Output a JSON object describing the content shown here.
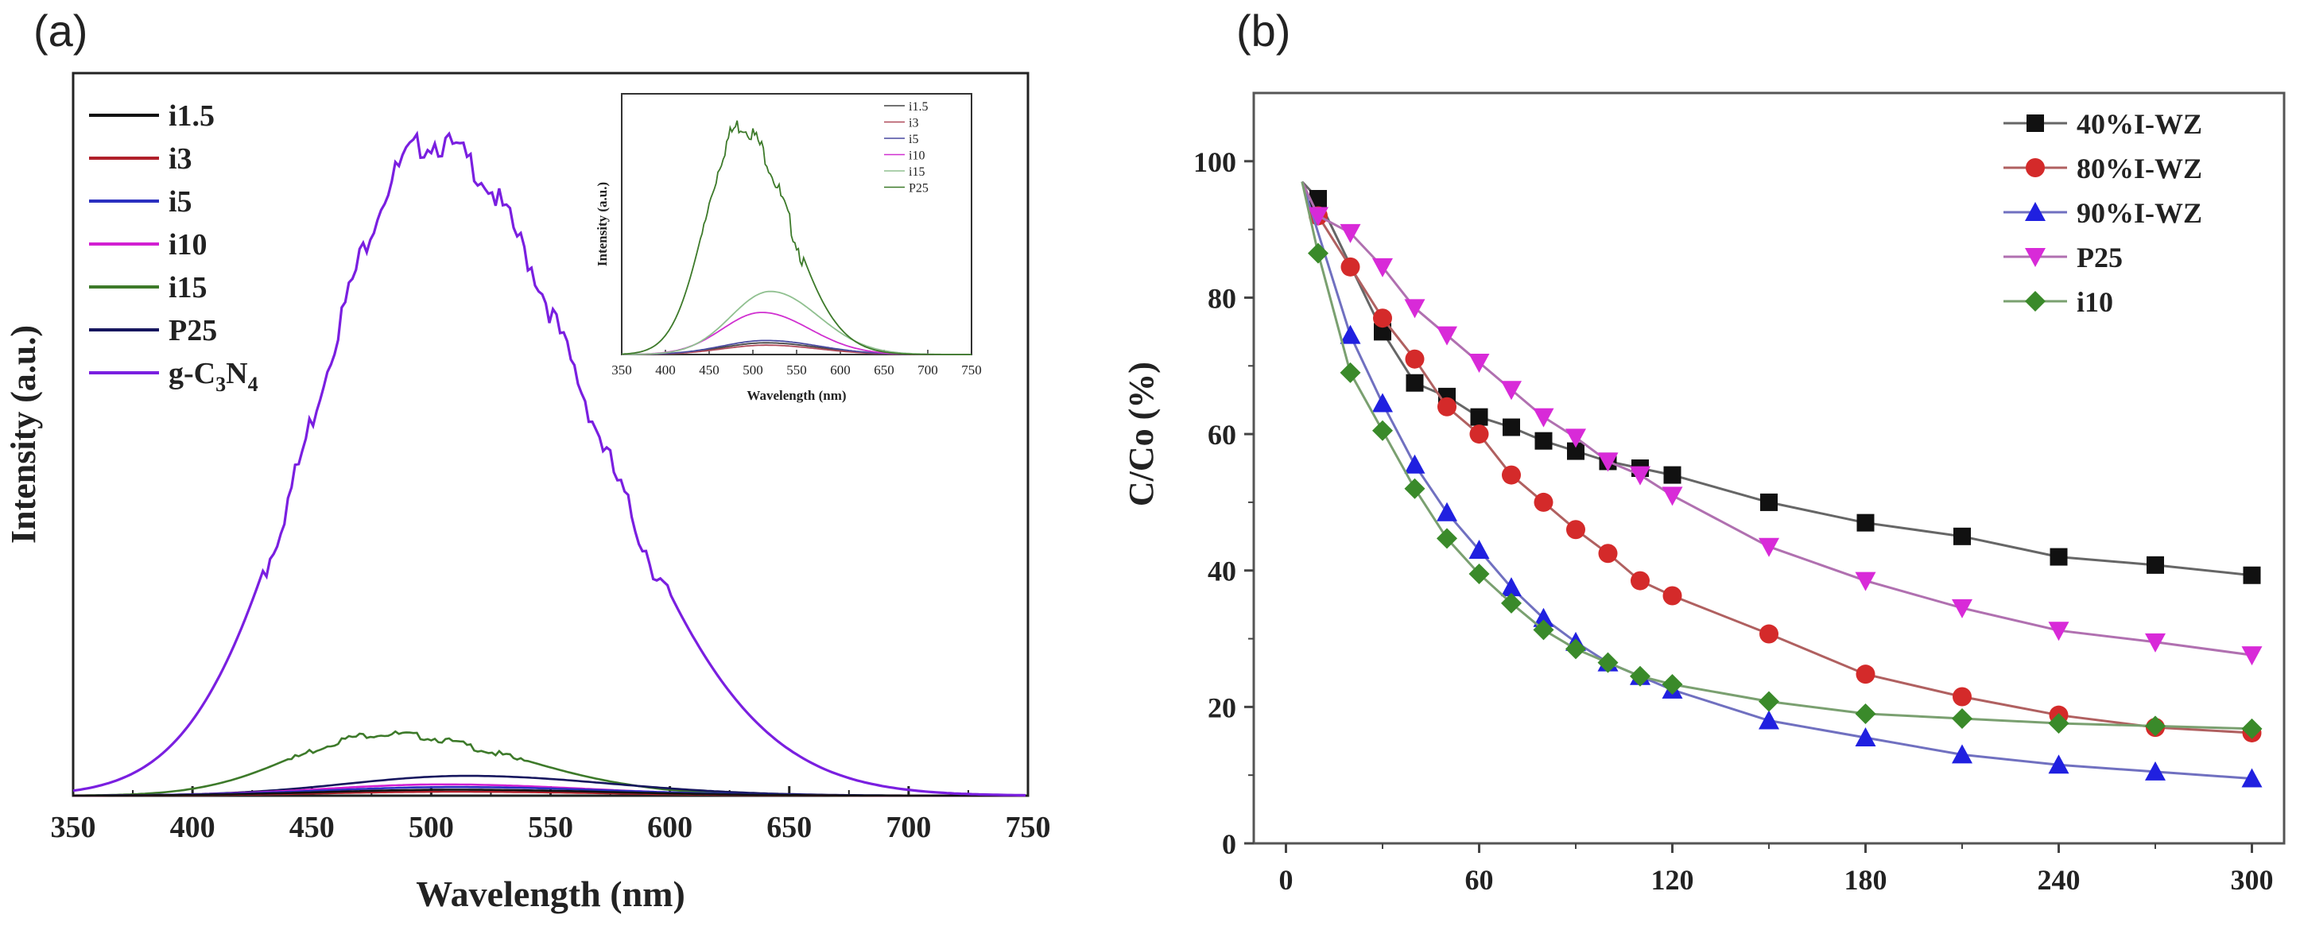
{
  "panels": {
    "a_label": "(a)",
    "b_label": "(b)"
  },
  "chart_data": [
    {
      "id": "a",
      "type": "line",
      "xlabel": "Wavelength (nm)",
      "ylabel": "Intensity (a.u.)",
      "xlim": [
        350,
        750
      ],
      "ylim": [
        0,
        100
      ],
      "xticks": [
        "350",
        "400",
        "450",
        "500",
        "550",
        "600",
        "650",
        "700",
        "750"
      ],
      "legend_position": "top-left",
      "series": [
        {
          "name": "i1.5",
          "color": "#111111",
          "peak_x": 510,
          "peak_y": 0.9,
          "sigma_l": 55,
          "sigma_r": 65
        },
        {
          "name": "i3",
          "color": "#b0202a",
          "peak_x": 510,
          "peak_y": 0.6,
          "sigma_l": 55,
          "sigma_r": 65
        },
        {
          "name": "i5",
          "color": "#2a2fc0",
          "peak_x": 510,
          "peak_y": 1.3,
          "sigma_l": 55,
          "sigma_r": 65
        },
        {
          "name": "i10",
          "color": "#d21fd2",
          "peak_x": 505,
          "peak_y": 1.7,
          "sigma_l": 50,
          "sigma_r": 60
        },
        {
          "name": "i15",
          "color": "#3d7a2a",
          "peak_x": 480,
          "peak_y": 9.6,
          "sigma_l": 38,
          "sigma_r": 55
        },
        {
          "name": "P25",
          "color": "#16165e",
          "peak_x": 515,
          "peak_y": 3.0,
          "sigma_l": 50,
          "sigma_r": 60
        },
        {
          "name": "g-C3N4",
          "name_main": "g-C",
          "sub1": "3",
          "mid": "N",
          "sub2": "4",
          "color": "#7a1fe0",
          "peak_x": 500,
          "peak_y": 100,
          "sigma_l": 48,
          "sigma_r": 65
        }
      ],
      "inset": {
        "xlabel": "Wavelength (nm)",
        "ylabel": "Intensity (a.u.)",
        "xlim": [
          350,
          750
        ],
        "xticks": [
          "350",
          "400",
          "450",
          "500",
          "550",
          "600",
          "650",
          "700",
          "750"
        ],
        "legend_position": "top-right",
        "series": [
          {
            "name": "i1.5",
            "color": "#444444",
            "peak_x": 515,
            "peak_y": 5,
            "sigma_l": 50,
            "sigma_r": 60
          },
          {
            "name": "i3",
            "color": "#b04a5a",
            "peak_x": 515,
            "peak_y": 4,
            "sigma_l": 50,
            "sigma_r": 60
          },
          {
            "name": "i5",
            "color": "#4a4aa0",
            "peak_x": 515,
            "peak_y": 6,
            "sigma_l": 50,
            "sigma_r": 60
          },
          {
            "name": "i10",
            "color": "#d030d0",
            "peak_x": 510,
            "peak_y": 18,
            "sigma_l": 45,
            "sigma_r": 55
          },
          {
            "name": "i15",
            "color": "#90c090",
            "peak_x": 520,
            "peak_y": 27,
            "sigma_l": 45,
            "sigma_r": 55
          },
          {
            "name": "P25",
            "color": "#3d7a2a",
            "peak_x": 485,
            "peak_y": 100,
            "sigma_l": 38,
            "sigma_r": 55
          }
        ]
      }
    },
    {
      "id": "b",
      "type": "line",
      "xlabel": "",
      "ylabel": "C/Co (%)",
      "xlim": [
        -10,
        310
      ],
      "ylim": [
        0,
        110
      ],
      "xticks": [
        0,
        60,
        120,
        180,
        240,
        300
      ],
      "yticks": [
        0,
        20,
        40,
        60,
        80,
        100
      ],
      "legend_position": "top-right",
      "series": [
        {
          "name": "40%I-WZ",
          "color": "#111111",
          "line_color": "#666666",
          "marker": "square",
          "x": [
            5,
            10,
            30,
            40,
            50,
            60,
            70,
            80,
            90,
            100,
            110,
            120,
            150,
            180,
            210,
            240,
            270,
            300
          ],
          "y": [
            97,
            94.5,
            75,
            67.5,
            65.5,
            62.5,
            61,
            59,
            57.5,
            56,
            55,
            54,
            50,
            47,
            45,
            42,
            40.8,
            39.3
          ]
        },
        {
          "name": "80%I-WZ",
          "color": "#d42a2a",
          "line_color": "#b06060",
          "marker": "circle",
          "x": [
            5,
            10,
            20,
            30,
            40,
            50,
            60,
            70,
            80,
            90,
            100,
            110,
            120,
            150,
            180,
            210,
            240,
            270,
            300
          ],
          "y": [
            97,
            92,
            84.5,
            77,
            71,
            64,
            60,
            54,
            50,
            46,
            42.5,
            38.5,
            36.3,
            30.7,
            24.8,
            21.5,
            18.8,
            17,
            16.2
          ]
        },
        {
          "name": "90%I-WZ",
          "color": "#2020e0",
          "line_color": "#7070c0",
          "marker": "triangle-up",
          "x": [
            5,
            20,
            30,
            40,
            50,
            60,
            70,
            80,
            90,
            100,
            110,
            120,
            150,
            180,
            210,
            240,
            270,
            300
          ],
          "y": [
            97,
            74.5,
            64.5,
            55.5,
            48.5,
            43,
            37.5,
            33,
            29.5,
            26.5,
            24.5,
            22.5,
            18,
            15.5,
            13,
            11.5,
            10.5,
            9.5
          ]
        },
        {
          "name": "P25",
          "color": "#d82ad8",
          "line_color": "#b070b0",
          "marker": "triangle-down",
          "x": [
            5,
            10,
            20,
            30,
            40,
            50,
            60,
            70,
            80,
            90,
            100,
            110,
            120,
            150,
            180,
            210,
            240,
            270,
            300
          ],
          "y": [
            97,
            92,
            89.5,
            84.5,
            78.5,
            74.5,
            70.5,
            66.5,
            62.5,
            59.5,
            56,
            54,
            51,
            43.5,
            38.5,
            34.5,
            31.2,
            29.5,
            27.6
          ]
        },
        {
          "name": "i10",
          "color": "#3a8a2a",
          "line_color": "#7aa070",
          "marker": "diamond",
          "x": [
            5,
            10,
            20,
            30,
            40,
            50,
            60,
            70,
            80,
            90,
            100,
            110,
            120,
            150,
            180,
            210,
            240,
            270,
            300
          ],
          "y": [
            97,
            86.5,
            69,
            60.5,
            52,
            44.7,
            39.5,
            35.2,
            31.3,
            28.5,
            26.5,
            24.5,
            23.3,
            20.8,
            19,
            18.3,
            17.6,
            17.2,
            16.8
          ]
        }
      ]
    }
  ]
}
